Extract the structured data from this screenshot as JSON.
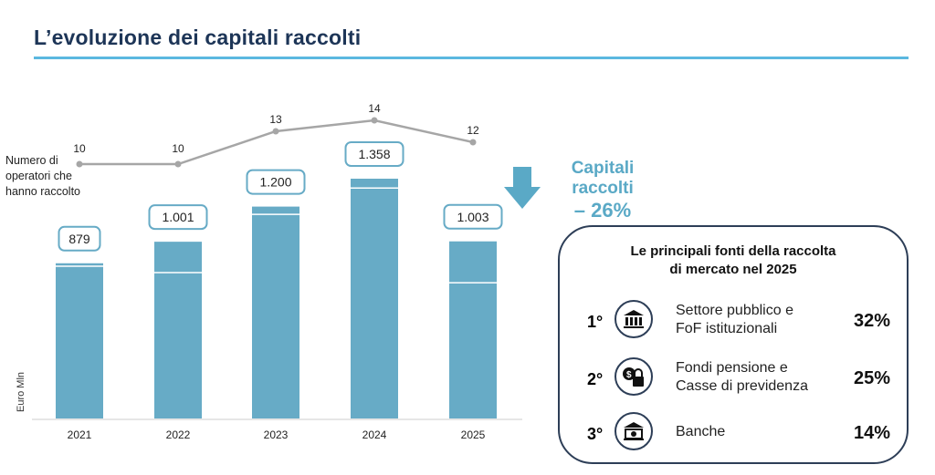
{
  "title": "L’evoluzione dei capitali raccolti",
  "chart_data": {
    "type": "bar",
    "categories": [
      "2021",
      "2022",
      "2023",
      "2024",
      "2025"
    ],
    "values": [
      879,
      1001,
      1200,
      1358,
      1003
    ],
    "value_labels": [
      "879",
      "1.001",
      "1.200",
      "1.358",
      "1.003"
    ],
    "segments_estimated": [
      [
        862,
        17
      ],
      [
        826,
        175
      ],
      [
        1156,
        44
      ],
      [
        1305,
        53
      ],
      [
        769,
        234
      ]
    ],
    "ylabel": "Euro Mln",
    "ylim": [
      0,
      1400
    ],
    "grid": false,
    "line_series": {
      "name": "Numero di operatori che hanno raccolto",
      "values": [
        10,
        10,
        13,
        14,
        12
      ]
    },
    "line_label": [
      "Numero di",
      "operatori che",
      "hanno raccolto"
    ]
  },
  "colors": {
    "bar": "#67abc6",
    "line": "#a6a6a6",
    "accent": "#5bb8e0"
  },
  "callout": {
    "label": "Capitali raccolti",
    "value": "– 26%",
    "icon": "arrow-down-icon"
  },
  "sources": {
    "title_line1": "Le principali fonti della raccolta",
    "title_line2": "di mercato nel 2025",
    "items": [
      {
        "rank": "1°",
        "icon": "bank-columns-icon",
        "line1": "Settore pubblico e",
        "line2": "FoF istituzionali",
        "pct": "32%"
      },
      {
        "rank": "2°",
        "icon": "money-lock-icon",
        "line1": "Fondi pensione e",
        "line2": "Casse di previdenza",
        "pct": "25%"
      },
      {
        "rank": "3°",
        "icon": "bank-money-icon",
        "line1": "Banche",
        "line2": "",
        "pct": "14%"
      }
    ]
  }
}
